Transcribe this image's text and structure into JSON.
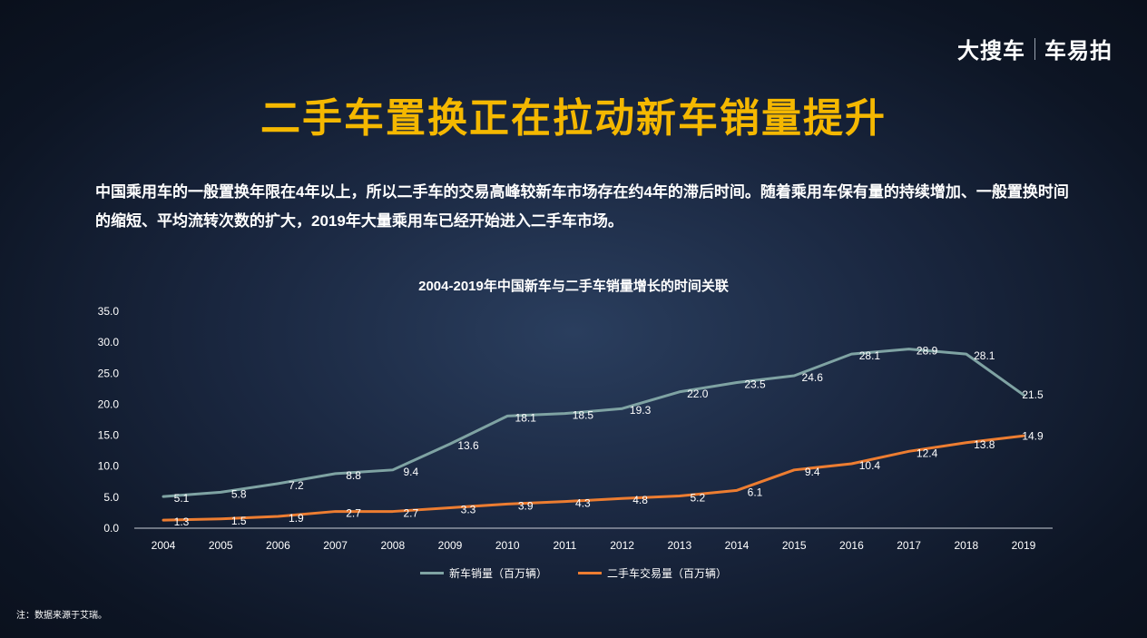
{
  "logo": {
    "brand1": "大搜车",
    "brand2": "车易拍"
  },
  "title": "二手车置换正在拉动新车销量提升",
  "description": "中国乘用车的一般置换年限在4年以上，所以二手车的交易高峰较新车市场存在约4年的滞后时间。随着乘用车保有量的持续增加、一般置换时间的缩短、平均流转次数的扩大，2019年大量乘用车已经开始进入二手车市场。",
  "note": "注：数据来源于艾瑞。",
  "chart_data": {
    "type": "line",
    "title": "2004-2019年中国新车与二手车销量增长的时间关联",
    "x": [
      "2004",
      "2005",
      "2006",
      "2007",
      "2008",
      "2009",
      "2010",
      "2011",
      "2012",
      "2013",
      "2014",
      "2015",
      "2016",
      "2017",
      "2018",
      "2019"
    ],
    "y_ticks": [
      "0.0",
      "5.0",
      "10.0",
      "15.0",
      "20.0",
      "25.0",
      "30.0",
      "35.0"
    ],
    "ylim": [
      0,
      35
    ],
    "legend_position": "bottom",
    "series": [
      {
        "name": "新车销量（百万辆）",
        "color": "#7fa3a3",
        "values": [
          5.1,
          5.8,
          7.2,
          8.8,
          9.4,
          13.6,
          18.1,
          18.5,
          19.3,
          22.0,
          23.5,
          24.6,
          28.1,
          28.9,
          28.1,
          21.5
        ],
        "labels": [
          "5.1",
          "5.8",
          "7.2",
          "8.8",
          "9.4",
          "13.6",
          "18.1",
          "18.5",
          "19.3",
          "22.0",
          "23.5",
          "24.6",
          "28.1",
          "28.9",
          "28.1",
          "21.5"
        ]
      },
      {
        "name": "二手车交易量（百万辆）",
        "color": "#ed7d31",
        "values": [
          1.3,
          1.5,
          1.9,
          2.7,
          2.7,
          3.3,
          3.9,
          4.3,
          4.8,
          5.2,
          6.1,
          9.4,
          10.4,
          12.4,
          13.8,
          14.9
        ],
        "labels": [
          "1.3",
          "1.5",
          "1.9",
          "2.7",
          "2.7",
          "3.3",
          "3.9",
          "4.3",
          "4.8",
          "5.2",
          "6.1",
          "9.4",
          "10.4",
          "12.4",
          "13.8",
          "14.9"
        ]
      }
    ]
  }
}
